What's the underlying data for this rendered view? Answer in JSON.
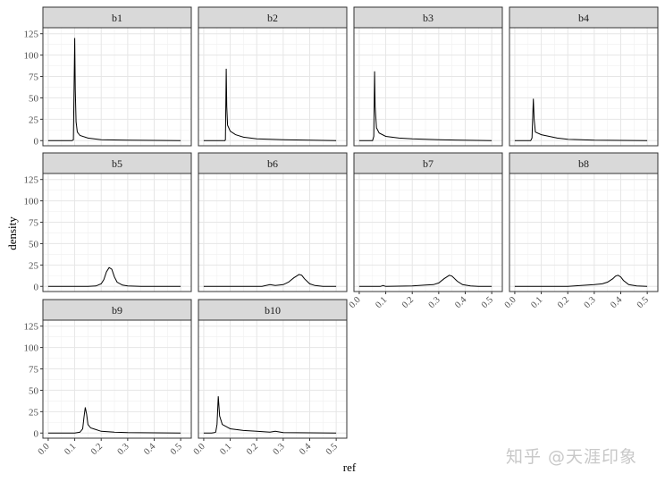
{
  "watermark": "知乎 @天涯印象",
  "chart_data": {
    "type": "line",
    "facet_layout": "4 columns x 3 rows, shared axes",
    "xlabel": "ref",
    "ylabel": "density",
    "xlim": [
      -0.02,
      0.54
    ],
    "ylim": [
      -6,
      132
    ],
    "x_ticks": [
      0.0,
      0.1,
      0.2,
      0.3,
      0.4,
      0.5
    ],
    "x_tick_labels": [
      "0.0",
      "0.1",
      "0.2",
      "0.3",
      "0.4",
      "0.5"
    ],
    "y_ticks": [
      0,
      25,
      50,
      75,
      100,
      125
    ],
    "y_tick_labels": [
      "0",
      "25",
      "50",
      "75",
      "100",
      "125"
    ],
    "grid": true,
    "panels": [
      {
        "name": "b1",
        "x": [
          0.0,
          0.09,
          0.095,
          0.1,
          0.102,
          0.105,
          0.11,
          0.12,
          0.15,
          0.2,
          0.3,
          0.5
        ],
        "y": [
          0,
          0,
          1,
          120,
          60,
          22,
          10,
          6,
          3,
          1,
          0.5,
          0
        ]
      },
      {
        "name": "b2",
        "x": [
          0.0,
          0.08,
          0.082,
          0.085,
          0.087,
          0.09,
          0.1,
          0.12,
          0.15,
          0.2,
          0.3,
          0.5
        ],
        "y": [
          0,
          0,
          1,
          84,
          40,
          18,
          11,
          7,
          4,
          2,
          1,
          0
        ]
      },
      {
        "name": "b3",
        "x": [
          0.0,
          0.05,
          0.055,
          0.058,
          0.06,
          0.065,
          0.075,
          0.1,
          0.15,
          0.2,
          0.3,
          0.5
        ],
        "y": [
          0,
          0,
          5,
          81,
          40,
          15,
          9,
          5,
          3,
          2,
          1,
          0
        ]
      },
      {
        "name": "b4",
        "x": [
          0.0,
          0.06,
          0.065,
          0.07,
          0.073,
          0.078,
          0.1,
          0.13,
          0.16,
          0.2,
          0.3,
          0.5
        ],
        "y": [
          0,
          0,
          3,
          49,
          25,
          10,
          7,
          5,
          3,
          1.5,
          0.5,
          0
        ]
      },
      {
        "name": "b5",
        "x": [
          0.0,
          0.15,
          0.18,
          0.2,
          0.21,
          0.22,
          0.23,
          0.24,
          0.25,
          0.26,
          0.28,
          0.3,
          0.35,
          0.5
        ],
        "y": [
          0,
          0,
          0.5,
          3,
          8,
          17,
          22,
          20,
          11,
          5,
          1.5,
          0.5,
          0,
          0
        ]
      },
      {
        "name": "b6",
        "x": [
          0.0,
          0.22,
          0.25,
          0.27,
          0.3,
          0.32,
          0.34,
          0.36,
          0.37,
          0.38,
          0.4,
          0.42,
          0.45,
          0.5
        ],
        "y": [
          0,
          0,
          2,
          1,
          2,
          5,
          10,
          14,
          13,
          9,
          3,
          1,
          0,
          0
        ]
      },
      {
        "name": "b7",
        "x": [
          0.0,
          0.08,
          0.09,
          0.1,
          0.2,
          0.25,
          0.28,
          0.3,
          0.32,
          0.34,
          0.35,
          0.37,
          0.39,
          0.42,
          0.45,
          0.5
        ],
        "y": [
          0,
          0,
          1,
          0,
          0.5,
          1.5,
          2,
          4,
          9,
          13,
          12,
          6,
          2,
          0.5,
          0,
          0
        ]
      },
      {
        "name": "b8",
        "x": [
          0.0,
          0.2,
          0.25,
          0.3,
          0.33,
          0.35,
          0.37,
          0.38,
          0.39,
          0.4,
          0.41,
          0.43,
          0.46,
          0.5
        ],
        "y": [
          0,
          0,
          1,
          2,
          3,
          5,
          9,
          12,
          13,
          11,
          7,
          2,
          0.5,
          0
        ]
      },
      {
        "name": "b9",
        "x": [
          0.0,
          0.1,
          0.12,
          0.13,
          0.135,
          0.14,
          0.145,
          0.15,
          0.16,
          0.18,
          0.2,
          0.25,
          0.3,
          0.5
        ],
        "y": [
          0,
          0,
          1,
          5,
          18,
          30,
          22,
          10,
          6,
          4,
          2,
          1,
          0.5,
          0
        ]
      },
      {
        "name": "b10",
        "x": [
          0.0,
          0.03,
          0.04,
          0.045,
          0.05,
          0.055,
          0.06,
          0.07,
          0.1,
          0.15,
          0.2,
          0.25,
          0.27,
          0.3,
          0.5
        ],
        "y": [
          0,
          0,
          0.5,
          1,
          10,
          43,
          20,
          10,
          5,
          3,
          2,
          1,
          2,
          0.5,
          0
        ]
      }
    ]
  }
}
